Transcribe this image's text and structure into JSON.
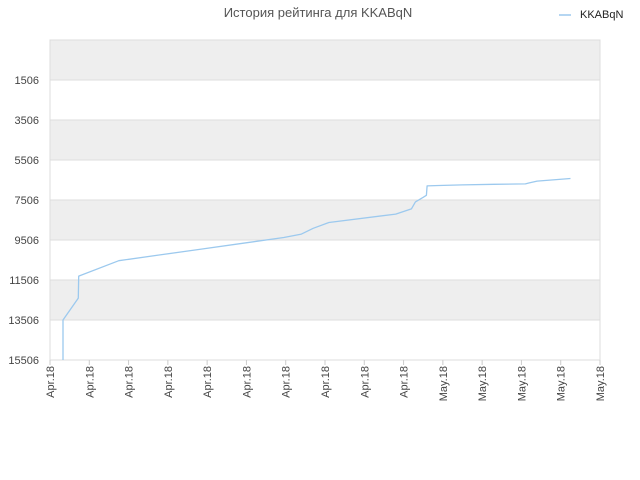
{
  "chart_data": {
    "type": "line",
    "title": "История рейтинга для KKABqN",
    "legend": {
      "position": "top-right",
      "entries": [
        "KKABqN"
      ]
    },
    "ylabel": "",
    "xlabel": "",
    "y_axis": {
      "inverted": true,
      "range": [
        -494,
        15506
      ],
      "ticks": [
        1506,
        3506,
        5506,
        7506,
        9506,
        11506,
        13506,
        15506
      ],
      "banded": true
    },
    "x_axis": {
      "range": [
        0,
        14
      ],
      "tick_labels": [
        "Apr.18",
        "Apr.18",
        "Apr.18",
        "Apr.18",
        "Apr.18",
        "Apr.18",
        "Apr.18",
        "Apr.18",
        "Apr.18",
        "Apr.18",
        "May.18",
        "May.18",
        "May.18",
        "May.18",
        "May.18"
      ],
      "label_rotation": -90
    },
    "series": [
      {
        "name": "KKABqN",
        "color": "#9cc9ee",
        "x": [
          0.33,
          0.33,
          0.72,
          0.73,
          1.75,
          2.8,
          3.85,
          4.9,
          5.95,
          6.4,
          6.7,
          7.1,
          8.8,
          9.2,
          9.3,
          9.5,
          9.58,
          9.6,
          9.9,
          10.5,
          11.3,
          12.1,
          12.2,
          12.4,
          13.25
        ],
        "y": [
          15506,
          13506,
          12410,
          11310,
          10540,
          10250,
          9960,
          9670,
          9380,
          9210,
          8920,
          8630,
          8210,
          7950,
          7600,
          7370,
          7270,
          6800,
          6780,
          6750,
          6720,
          6700,
          6650,
          6560,
          6430
        ]
      }
    ]
  }
}
